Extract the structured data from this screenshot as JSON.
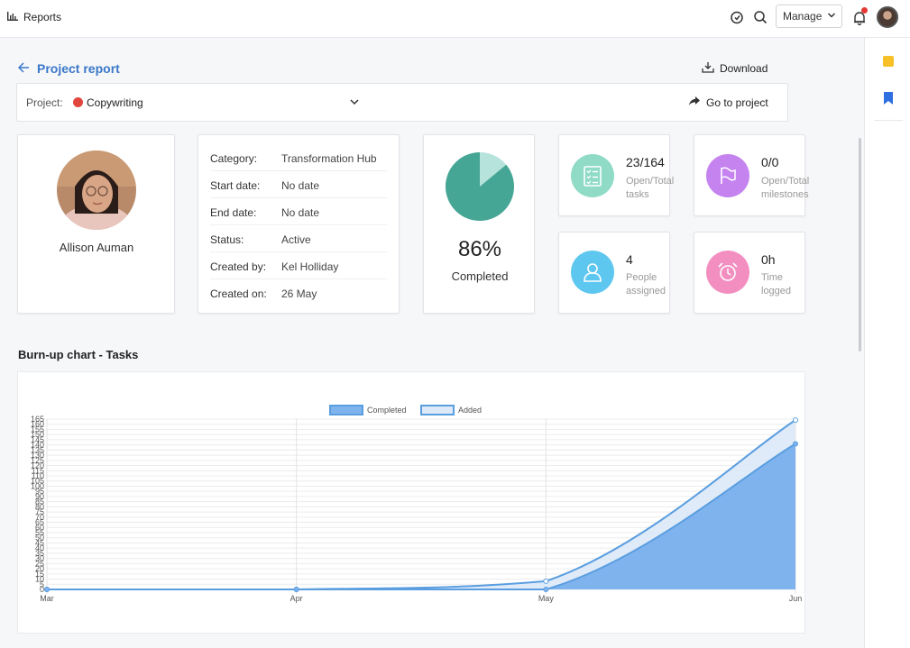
{
  "topbar": {
    "app_title": "Reports",
    "manage_label": "Manage"
  },
  "header": {
    "back_label": "Project report",
    "download_label": "Download"
  },
  "project_selector": {
    "label": "Project:",
    "value": "Copywriting",
    "dot_color": "#e0463e",
    "goto_label": "Go to project"
  },
  "profile": {
    "name": "Allison Auman"
  },
  "details": [
    {
      "key": "Category:",
      "value": "Transformation Hub"
    },
    {
      "key": "Start date:",
      "value": "No date"
    },
    {
      "key": "End date:",
      "value": "No date"
    },
    {
      "key": "Status:",
      "value": "Active"
    },
    {
      "key": "Created by:",
      "value": "Kel Holliday"
    },
    {
      "key": "Created on:",
      "value": "26 May"
    }
  ],
  "completion": {
    "percent": 86,
    "percent_text": "86%",
    "label": "Completed",
    "colors": {
      "done": "#46a695",
      "remaining": "#b6e3dc"
    }
  },
  "stats": {
    "tasks": {
      "value": "23/164",
      "label_1": "Open/Total",
      "label_2": "tasks",
      "color": "#8fdbc6",
      "icon": "checklist-icon"
    },
    "milestones": {
      "value": "0/0",
      "label_1": "Open/Total",
      "label_2": "milestones",
      "color": "#c583f0",
      "icon": "flag-icon"
    },
    "people": {
      "value": "4",
      "label_1": "People",
      "label_2": "assigned",
      "color": "#5ec7ef",
      "icon": "person-icon"
    },
    "time": {
      "value": "0h",
      "label_1": "Time",
      "label_2": "logged",
      "color": "#f28fc0",
      "icon": "alarm-clock-icon"
    }
  },
  "section_title": "Burn-up chart - Tasks",
  "chart_data": {
    "type": "area",
    "categories": [
      "Mar",
      "Apr",
      "May",
      "Jun"
    ],
    "series": [
      {
        "name": "Completed",
        "values": [
          0,
          0,
          0,
          141
        ],
        "color": "#7fb3ee"
      },
      {
        "name": "Added",
        "values": [
          0,
          0,
          8,
          164
        ],
        "color": "#dde9f8"
      }
    ],
    "ylim": [
      0,
      165
    ],
    "y_step": 5,
    "legend_position": "top-center",
    "grid": true
  }
}
